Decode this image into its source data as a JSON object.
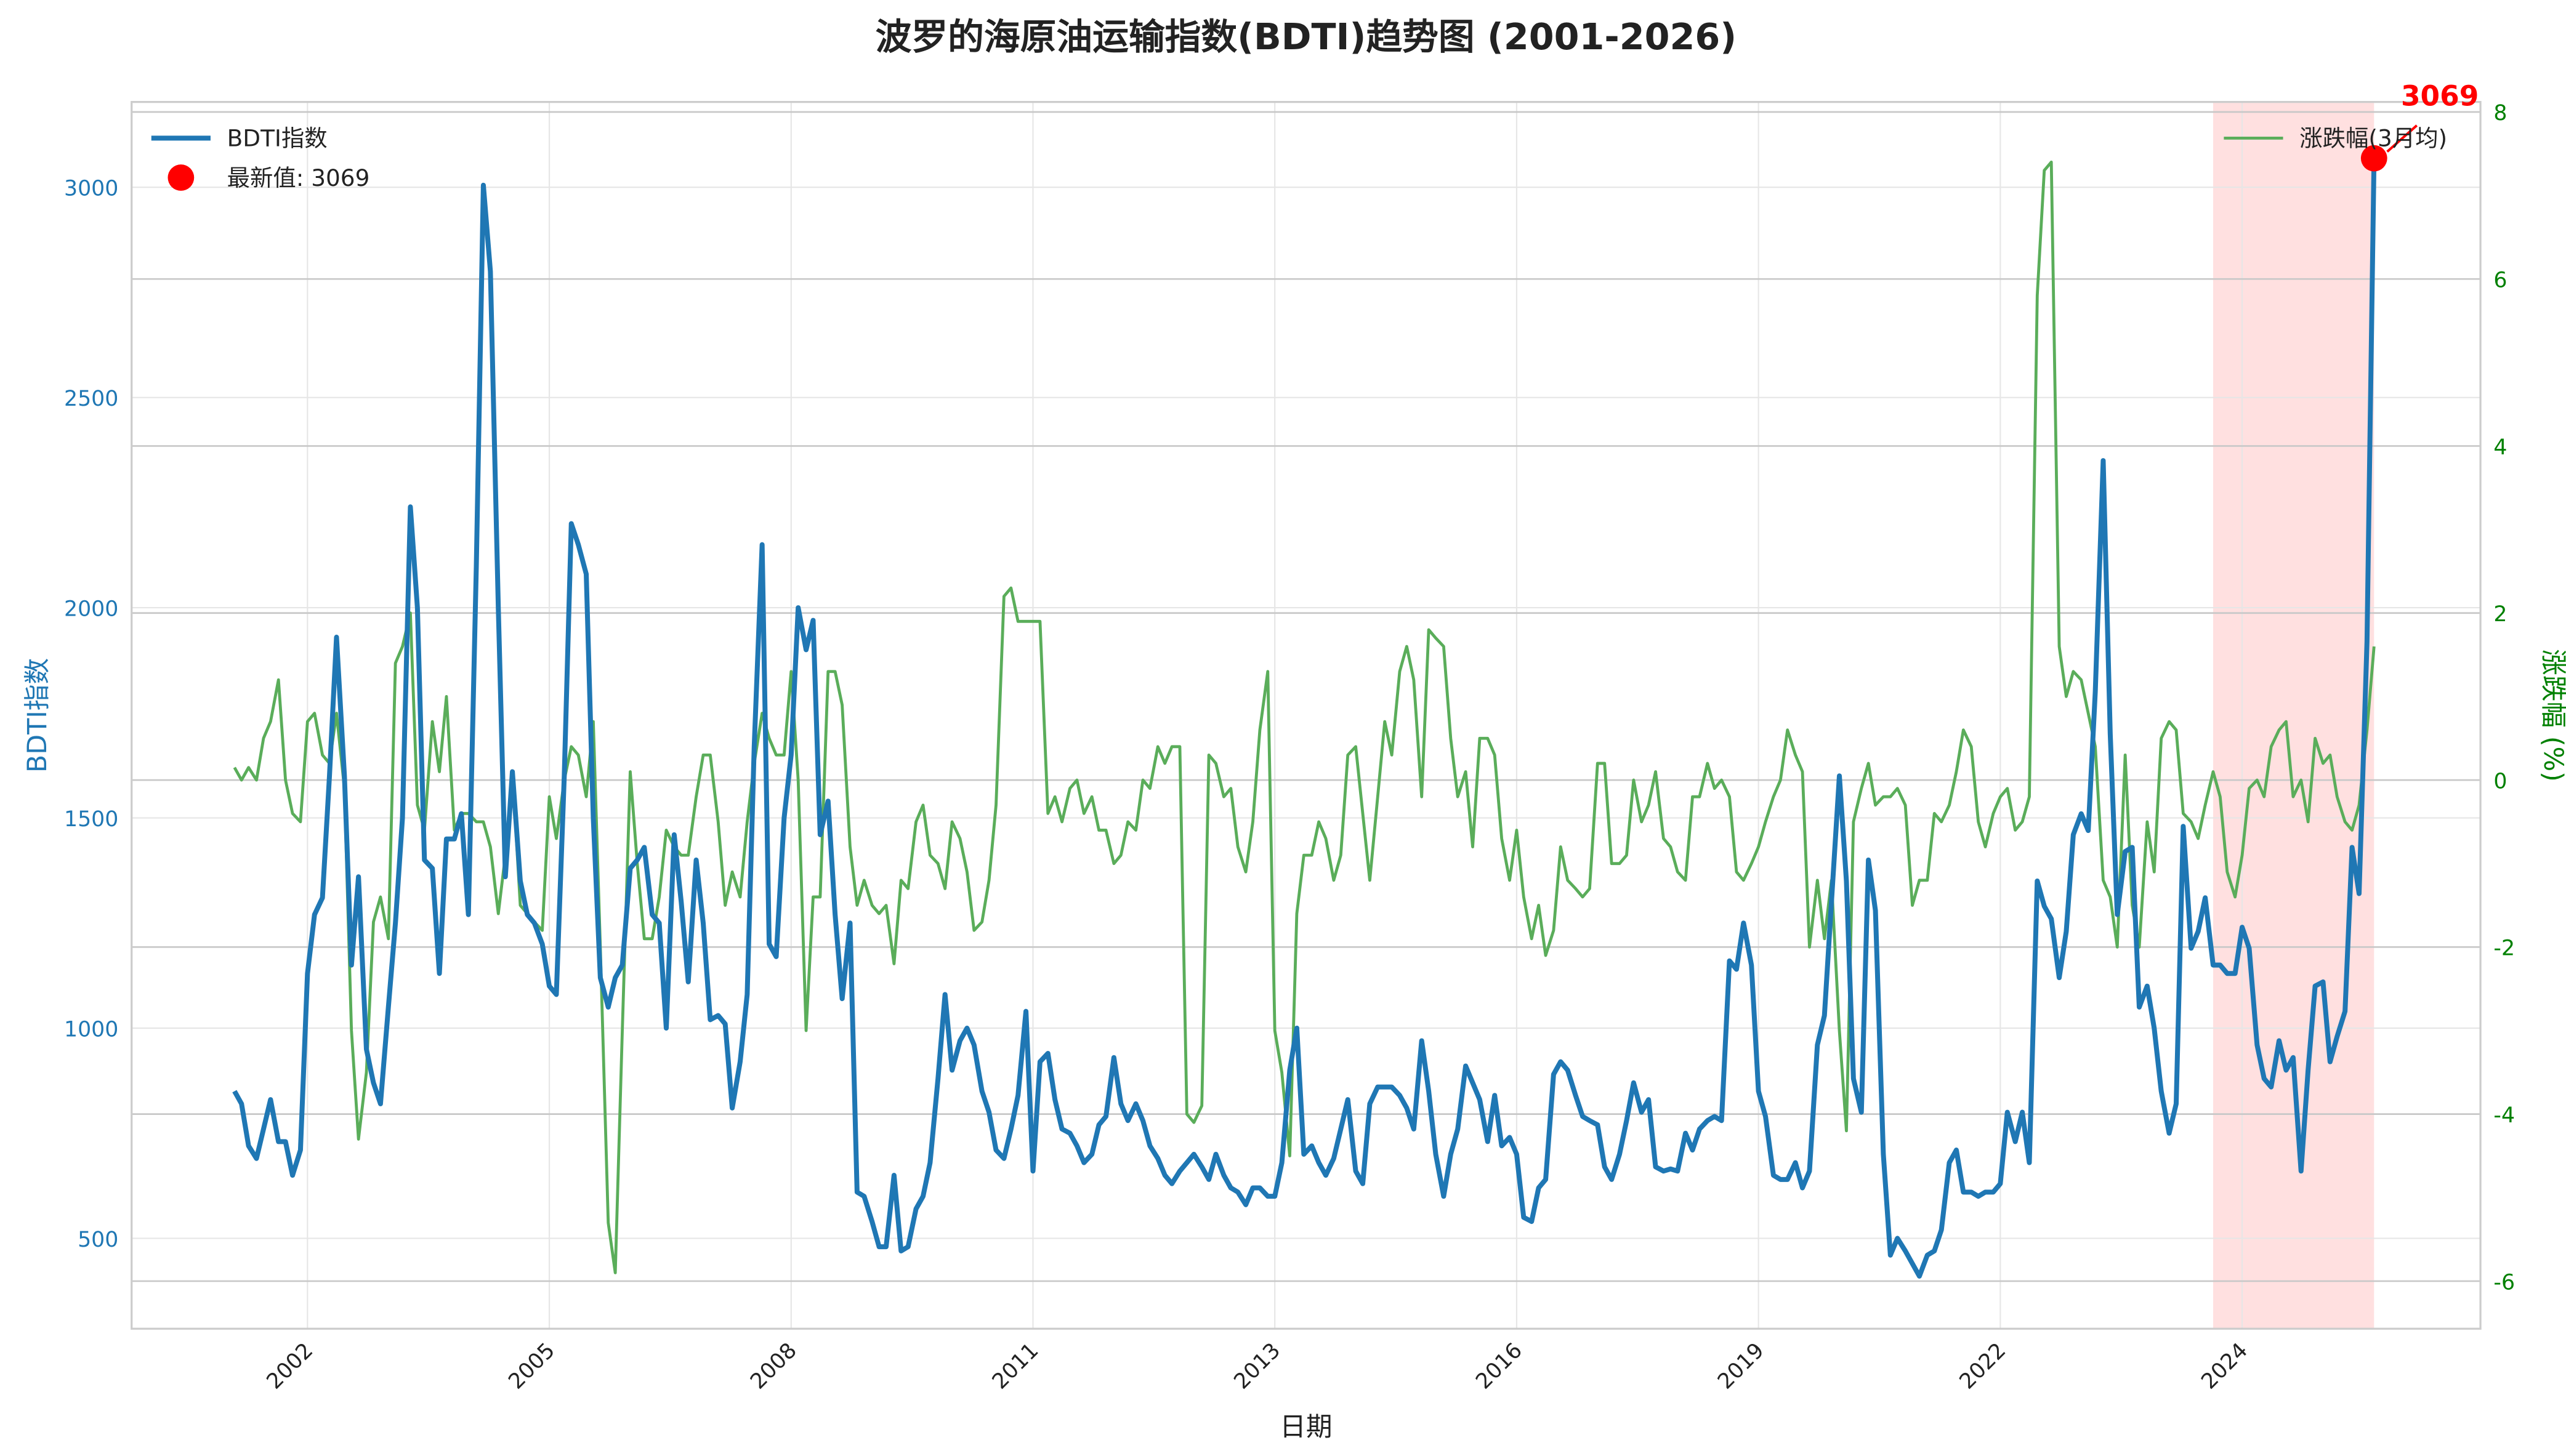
{
  "chart_data": {
    "type": "line",
    "title": "波罗的海原油运输指数(BDTI)趋势图 (2001-2026)",
    "xlabel": "日期",
    "ylabel": "BDTI指数",
    "y2label": "涨跌幅 (%)",
    "latest_label": "最新值: 3069",
    "annotation": "3069",
    "highlight": [
      2023.67,
      2025.5
    ],
    "xlim": [
      2000.0,
      2026.71
    ],
    "xticks": [
      {
        "value": 2002,
        "label": "2002"
      },
      {
        "value": 2004.75,
        "label": "2005"
      },
      {
        "value": 2007.5,
        "label": "2008"
      },
      {
        "value": 2010.25,
        "label": "2011"
      },
      {
        "value": 2013,
        "label": "2013"
      },
      {
        "value": 2015.75,
        "label": "2016"
      },
      {
        "value": 2018.5,
        "label": "2019"
      },
      {
        "value": 2021.25,
        "label": "2022"
      },
      {
        "value": 2024,
        "label": "2024"
      }
    ],
    "ylim": [
      285,
      3203
    ],
    "yticks": [
      500,
      1000,
      1500,
      2000,
      2500,
      3000
    ],
    "y2lim": [
      -6.57,
      8.12
    ],
    "y2ticks": [
      -6,
      -4,
      -2,
      0,
      2,
      4,
      6,
      8
    ],
    "grid": true,
    "legend": "upper left",
    "legend2": "upper right",
    "x": [
      2001.17,
      2001.25,
      2001.33,
      2001.42,
      2001.5,
      2001.58,
      2001.67,
      2001.75,
      2001.83,
      2001.92,
      2002,
      2002.08,
      2002.17,
      2002.25,
      2002.33,
      2002.42,
      2002.5,
      2002.58,
      2002.67,
      2002.75,
      2002.83,
      2002.92,
      2003,
      2003.08,
      2003.17,
      2003.25,
      2003.33,
      2003.42,
      2003.5,
      2003.58,
      2003.67,
      2003.75,
      2003.83,
      2003.92,
      2004,
      2004.08,
      2004.17,
      2004.25,
      2004.33,
      2004.42,
      2004.5,
      2004.58,
      2004.67,
      2004.75,
      2004.83,
      2004.92,
      2005,
      2005.08,
      2005.17,
      2005.25,
      2005.33,
      2005.42,
      2005.5,
      2005.58,
      2005.67,
      2005.75,
      2005.83,
      2005.92,
      2006,
      2006.08,
      2006.17,
      2006.25,
      2006.33,
      2006.42,
      2006.5,
      2006.58,
      2006.67,
      2006.75,
      2006.83,
      2006.92,
      2007,
      2007.08,
      2007.17,
      2007.25,
      2007.33,
      2007.42,
      2007.5,
      2007.58,
      2007.67,
      2007.75,
      2007.83,
      2007.92,
      2008,
      2008.08,
      2008.17,
      2008.25,
      2008.33,
      2008.42,
      2008.5,
      2008.58,
      2008.67,
      2008.75,
      2008.83,
      2008.92,
      2009,
      2009.08,
      2009.17,
      2009.25,
      2009.33,
      2009.42,
      2009.5,
      2009.58,
      2009.67,
      2009.75,
      2009.83,
      2009.92,
      2010,
      2010.08,
      2010.17,
      2010.25,
      2010.33,
      2010.42,
      2010.5,
      2010.58,
      2010.67,
      2010.75,
      2010.83,
      2010.92,
      2011,
      2011.08,
      2011.17,
      2011.25,
      2011.33,
      2011.42,
      2011.5,
      2011.58,
      2011.67,
      2011.75,
      2011.83,
      2011.92,
      2012,
      2012.08,
      2012.17,
      2012.25,
      2012.33,
      2012.42,
      2012.5,
      2012.58,
      2012.67,
      2012.75,
      2012.83,
      2012.92,
      2013,
      2013.08,
      2013.17,
      2013.25,
      2013.33,
      2013.42,
      2013.5,
      2013.58,
      2013.67,
      2013.75,
      2013.83,
      2013.92,
      2014,
      2014.08,
      2014.17,
      2014.25,
      2014.33,
      2014.42,
      2014.5,
      2014.58,
      2014.67,
      2014.75,
      2014.83,
      2014.92,
      2015,
      2015.08,
      2015.17,
      2015.25,
      2015.33,
      2015.42,
      2015.5,
      2015.58,
      2015.67,
      2015.75,
      2015.83,
      2015.92,
      2016,
      2016.08,
      2016.17,
      2016.25,
      2016.33,
      2016.42,
      2016.5,
      2016.58,
      2016.67,
      2016.75,
      2016.83,
      2016.92,
      2017,
      2017.08,
      2017.17,
      2017.25,
      2017.33,
      2017.42,
      2017.5,
      2017.58,
      2017.67,
      2017.75,
      2017.83,
      2017.92,
      2018,
      2018.08,
      2018.17,
      2018.25,
      2018.33,
      2018.42,
      2018.5,
      2018.58,
      2018.67,
      2018.75,
      2018.83,
      2018.92,
      2019,
      2019.08,
      2019.17,
      2019.25,
      2019.33,
      2019.42,
      2019.5,
      2019.58,
      2019.67,
      2019.75,
      2019.83,
      2019.92,
      2020,
      2020.08,
      2020.17,
      2020.25,
      2020.33,
      2020.42,
      2020.5,
      2020.58,
      2020.67,
      2020.75,
      2020.83,
      2020.92,
      2021,
      2021.08,
      2021.17,
      2021.25,
      2021.33,
      2021.42,
      2021.5,
      2021.58,
      2021.67,
      2021.75,
      2021.83,
      2021.92,
      2022,
      2022.08,
      2022.17,
      2022.25,
      2022.33,
      2022.42,
      2022.5,
      2022.58,
      2022.67,
      2022.75,
      2022.83,
      2022.92,
      2023,
      2023.08,
      2023.17,
      2023.25,
      2023.33,
      2023.42,
      2023.5,
      2023.58,
      2023.67,
      2023.75,
      2023.83,
      2023.92,
      2024,
      2024.08,
      2024.17,
      2024.25,
      2024.33,
      2024.42,
      2024.5,
      2024.58,
      2024.67,
      2024.75,
      2024.83,
      2024.92,
      2025,
      2025.08,
      2025.17,
      2025.25,
      2025.33,
      2025.42,
      2025.5
    ],
    "series": [
      {
        "name": "BDTI指数",
        "color": "#1f77b4",
        "values": [
          850,
          820,
          720,
          690,
          760,
          830,
          730,
          730,
          650,
          710,
          1130,
          1270,
          1310,
          1600,
          1930,
          1600,
          1150,
          1360,
          950,
          870,
          820,
          1050,
          1250,
          1500,
          2240,
          2000,
          1400,
          1380,
          1130,
          1450,
          1450,
          1510,
          1270,
          2100,
          3005,
          2800,
          2000,
          1360,
          1610,
          1350,
          1270,
          1250,
          1200,
          1100,
          1080,
          1600,
          2200,
          2150,
          2080,
          1500,
          1120,
          1050,
          1120,
          1150,
          1380,
          1400,
          1430,
          1270,
          1250,
          1000,
          1460,
          1300,
          1110,
          1400,
          1250,
          1020,
          1030,
          1010,
          810,
          920,
          1080,
          1670,
          2150,
          1200,
          1170,
          1500,
          1650,
          2000,
          1900,
          1970,
          1460,
          1540,
          1270,
          1070,
          1250,
          610,
          600,
          540,
          480,
          480,
          650,
          470,
          480,
          570,
          600,
          680,
          880,
          1080,
          900,
          970,
          1000,
          960,
          850,
          800,
          710,
          690,
          760,
          840,
          1040,
          660,
          920,
          940,
          830,
          760,
          750,
          720,
          680,
          700,
          770,
          790,
          930,
          820,
          780,
          820,
          780,
          720,
          690,
          650,
          630,
          660,
          680,
          700,
          670,
          640,
          700,
          650,
          620,
          610,
          580,
          620,
          620,
          600,
          600,
          680,
          900,
          1000,
          700,
          720,
          680,
          650,
          690,
          760,
          830,
          660,
          630,
          820,
          860,
          860,
          860,
          840,
          810,
          760,
          970,
          850,
          700,
          600,
          700,
          760,
          910,
          870,
          830,
          730,
          840,
          720,
          740,
          700,
          550,
          540,
          620,
          640,
          890,
          920,
          900,
          840,
          790,
          780,
          770,
          670,
          640,
          700,
          780,
          870,
          800,
          830,
          670,
          660,
          665,
          660,
          750,
          710,
          760,
          780,
          790,
          780,
          1160,
          1140,
          1250,
          1150,
          850,
          790,
          650,
          640,
          640,
          680,
          620,
          660,
          960,
          1030,
          1300,
          1600,
          1350,
          880,
          800,
          1400,
          1280,
          700,
          460,
          500,
          470,
          440,
          410,
          460,
          470,
          520,
          680,
          710,
          610,
          610,
          600,
          610,
          610,
          630,
          800,
          730,
          800,
          680,
          1350,
          1290,
          1260,
          1120,
          1230,
          1460,
          1510,
          1470,
          1800,
          2350,
          1700,
          1270,
          1420,
          1430,
          1050,
          1100,
          1000,
          850,
          750,
          820,
          1480,
          1190,
          1230,
          1310,
          1150,
          1150,
          1130,
          1130,
          1240,
          1190,
          960,
          880,
          860,
          970,
          900,
          930,
          660,
          900,
          1100,
          1110,
          920,
          980,
          1040,
          1430,
          1320,
          1920,
          3069
        ]
      },
      {
        "name": "涨跌幅(3月均)",
        "color": "#5aad5a",
        "axis": "y2",
        "values": [
          0.15,
          0.0,
          0.15,
          0.0,
          0.5,
          0.7,
          1.2,
          0.0,
          -0.4,
          -0.5,
          0.7,
          0.8,
          0.3,
          0.2,
          0.8,
          -0.1,
          -3.0,
          -4.3,
          -3.5,
          -1.7,
          -1.4,
          -1.9,
          1.4,
          1.6,
          2.0,
          -0.3,
          -0.6,
          0.7,
          0.1,
          1.0,
          -0.6,
          -0.4,
          -0.4,
          -0.5,
          -0.5,
          -0.8,
          -1.6,
          -0.9,
          0.1,
          -1.5,
          -1.6,
          -1.7,
          -1.8,
          -0.2,
          -0.7,
          0.0,
          0.4,
          0.3,
          -0.2,
          0.7,
          -2.0,
          -5.3,
          -5.9,
          -3.0,
          0.1,
          -1.0,
          -1.9,
          -1.9,
          -1.4,
          -0.6,
          -0.8,
          -0.9,
          -0.9,
          -0.2,
          0.3,
          0.3,
          -0.5,
          -1.5,
          -1.1,
          -1.4,
          -0.5,
          0.2,
          0.8,
          0.5,
          0.3,
          0.3,
          1.3,
          0.0,
          -3.0,
          -1.4,
          -1.4,
          1.3,
          1.3,
          0.9,
          -0.8,
          -1.5,
          -1.2,
          -1.5,
          -1.6,
          -1.5,
          -2.2,
          -1.2,
          -1.3,
          -0.5,
          -0.3,
          -0.9,
          -1.0,
          -1.3,
          -0.5,
          -0.7,
          -1.1,
          -1.8,
          -1.7,
          -1.2,
          -0.3,
          2.2,
          2.3,
          1.9,
          1.9,
          1.9,
          1.9,
          -0.4,
          -0.2,
          -0.5,
          -0.1,
          0.0,
          -0.4,
          -0.2,
          -0.6,
          -0.6,
          -1.0,
          -0.9,
          -0.5,
          -0.6,
          0.0,
          -0.1,
          0.4,
          0.2,
          0.4,
          0.4,
          -4.0,
          -4.1,
          -3.9,
          0.3,
          0.2,
          -0.2,
          -0.1,
          -0.8,
          -1.1,
          -0.5,
          0.6,
          1.3,
          -3.0,
          -3.5,
          -4.5,
          -1.6,
          -0.9,
          -0.9,
          -0.5,
          -0.7,
          -1.2,
          -0.9,
          0.3,
          0.4,
          -0.4,
          -1.2,
          -0.2,
          0.7,
          0.3,
          1.3,
          1.6,
          1.2,
          -0.2,
          1.8,
          1.7,
          1.6,
          0.5,
          -0.2,
          0.1,
          -0.8,
          0.5,
          0.5,
          0.3,
          -0.7,
          -1.2,
          -0.6,
          -1.4,
          -1.9,
          -1.5,
          -2.1,
          -1.8,
          -0.8,
          -1.2,
          -1.3,
          -1.4,
          -1.3,
          0.2,
          0.2,
          -1.0,
          -1.0,
          -0.9,
          0.0,
          -0.5,
          -0.3,
          0.1,
          -0.7,
          -0.8,
          -1.1,
          -1.2,
          -0.2,
          -0.2,
          0.2,
          -0.1,
          0.0,
          -0.2,
          -1.1,
          -1.2,
          -1.0,
          -0.8,
          -0.5,
          -0.2,
          0.0,
          0.6,
          0.3,
          0.1,
          -2.0,
          -1.2,
          -1.9,
          -1.2,
          -3.0,
          -4.2,
          -0.5,
          -0.1,
          0.2,
          -0.3,
          -0.2,
          -0.2,
          -0.1,
          -0.3,
          -1.5,
          -1.2,
          -1.2,
          -0.4,
          -0.5,
          -0.3,
          0.1,
          0.6,
          0.4,
          -0.5,
          -0.8,
          -0.4,
          -0.2,
          -0.1,
          -0.6,
          -0.5,
          -0.2,
          5.8,
          7.3,
          7.4,
          1.6,
          1.0,
          1.3,
          1.2,
          0.8,
          0.4,
          -1.2,
          -1.4,
          -2.0,
          0.3,
          -1.5,
          -2.0,
          -0.5,
          -1.1,
          0.5,
          0.7,
          0.6,
          -0.4,
          -0.5,
          -0.7,
          -0.3,
          0.1,
          -0.2,
          -1.1,
          -1.4,
          -0.9,
          -0.1,
          0.0,
          -0.2,
          0.4,
          0.6,
          0.7,
          -0.2,
          0.0,
          -0.5,
          0.5,
          0.2,
          0.3,
          -0.2,
          -0.5,
          -0.6,
          -0.3,
          0.6,
          1.6
        ]
      }
    ]
  }
}
